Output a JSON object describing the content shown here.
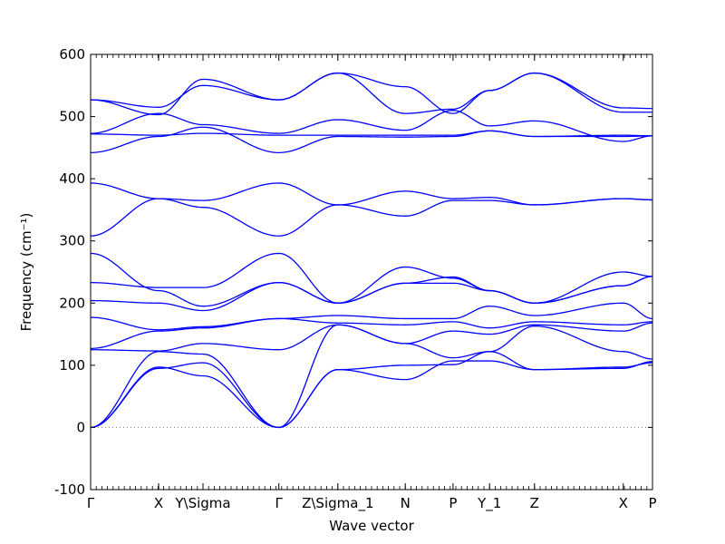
{
  "chart_data": {
    "type": "line",
    "title": "",
    "xlabel": "Wave vector",
    "ylabel": "Frequency (cm⁻¹)",
    "ylim": [
      -100,
      600
    ],
    "yticks": [
      -100,
      0,
      100,
      200,
      300,
      400,
      500,
      600
    ],
    "xlim": [
      0,
      1
    ],
    "series_color": "#0000ff",
    "zero_line": {
      "value": 0,
      "style": "dotted",
      "color": "#808080"
    },
    "xticks": [
      {
        "label": "Γ",
        "x": 0.0
      },
      {
        "label": "X",
        "x": 0.121
      },
      {
        "label": "Y\\Sigma",
        "x": 0.2
      },
      {
        "label": "Γ",
        "x": 0.335
      },
      {
        "label": "Z\\Sigma_1",
        "x": 0.44
      },
      {
        "label": "N",
        "x": 0.56
      },
      {
        "label": "P",
        "x": 0.645
      },
      {
        "label": "Y_1",
        "x": 0.71
      },
      {
        "label": "Z",
        "x": 0.79
      },
      {
        "label": "X",
        "x": 0.948
      },
      {
        "label": "P",
        "x": 1.0
      }
    ],
    "series": [
      {
        "x": [
          0,
          0.121,
          0.2,
          0.335,
          0.44,
          0.56,
          0.645,
          0.71,
          0.79,
          0.948,
          1.0
        ],
        "values": [
          0,
          95,
          104,
          0,
          93,
          77,
          107,
          107,
          93,
          95,
          106
        ]
      },
      {
        "x": [
          0,
          0.121,
          0.2,
          0.335,
          0.44,
          0.56,
          0.645,
          0.71,
          0.79,
          0.948,
          1.0
        ],
        "values": [
          0,
          97,
          83,
          0,
          93,
          100,
          101,
          122,
          93,
          97,
          104
        ]
      },
      {
        "x": [
          0,
          0.121,
          0.2,
          0.335,
          0.44,
          0.56,
          0.645,
          0.71,
          0.79,
          0.948,
          1.0
        ],
        "values": [
          0,
          122,
          118,
          0,
          165,
          135,
          112,
          122,
          163,
          122,
          110
        ]
      },
      {
        "x": [
          0,
          0.121,
          0.2,
          0.335,
          0.44,
          0.56,
          0.645,
          0.71,
          0.79,
          0.948,
          1.0
        ],
        "values": [
          125,
          123,
          135,
          125,
          165,
          135,
          155,
          150,
          165,
          155,
          168
        ]
      },
      {
        "x": [
          0,
          0.121,
          0.2,
          0.335,
          0.44,
          0.56,
          0.645,
          0.71,
          0.79,
          0.948,
          1.0
        ],
        "values": [
          127,
          155,
          160,
          175,
          168,
          165,
          170,
          160,
          170,
          165,
          170
        ]
      },
      {
        "x": [
          0,
          0.121,
          0.2,
          0.335,
          0.44,
          0.56,
          0.645,
          0.71,
          0.79,
          0.948,
          1.0
        ],
        "values": [
          177,
          157,
          162,
          175,
          180,
          175,
          175,
          195,
          180,
          200,
          175
        ]
      },
      {
        "x": [
          0,
          0.121,
          0.2,
          0.335,
          0.44,
          0.56,
          0.645,
          0.71,
          0.79,
          0.948,
          1.0
        ],
        "values": [
          204,
          200,
          188,
          233,
          200,
          232,
          242,
          220,
          200,
          228,
          243
        ]
      },
      {
        "x": [
          0,
          0.121,
          0.2,
          0.335,
          0.44,
          0.56,
          0.645,
          0.71,
          0.79,
          0.948,
          1.0
        ],
        "values": [
          233,
          225,
          225,
          280,
          200,
          258,
          240,
          220,
          200,
          250,
          243
        ]
      },
      {
        "x": [
          0,
          0.121,
          0.2,
          0.335,
          0.44,
          0.56,
          0.645,
          0.71,
          0.79,
          0.948,
          1.0
        ],
        "values": [
          280,
          220,
          195,
          233,
          200,
          232,
          232,
          220,
          200,
          228,
          243
        ]
      },
      {
        "x": [
          0,
          0.121,
          0.2,
          0.335,
          0.44,
          0.56,
          0.645,
          0.71,
          0.79,
          0.948,
          1.0
        ],
        "values": [
          308,
          368,
          354,
          308,
          358,
          340,
          365,
          365,
          358,
          368,
          366
        ]
      },
      {
        "x": [
          0,
          0.121,
          0.2,
          0.335,
          0.44,
          0.56,
          0.645,
          0.71,
          0.79,
          0.948,
          1.0
        ],
        "values": [
          393,
          368,
          365,
          393,
          358,
          380,
          368,
          370,
          358,
          368,
          366
        ]
      },
      {
        "x": [
          0,
          0.121,
          0.2,
          0.335,
          0.44,
          0.56,
          0.645,
          0.71,
          0.79,
          0.948,
          1.0
        ],
        "values": [
          442,
          468,
          483,
          442,
          468,
          467,
          468,
          477,
          468,
          468,
          469
        ]
      },
      {
        "x": [
          0,
          0.121,
          0.2,
          0.335,
          0.44,
          0.56,
          0.645,
          0.71,
          0.79,
          0.948,
          1.0
        ],
        "values": [
          472,
          470,
          473,
          470,
          470,
          470,
          470,
          477,
          468,
          470,
          469
        ]
      },
      {
        "x": [
          0,
          0.121,
          0.2,
          0.335,
          0.44,
          0.56,
          0.645,
          0.71,
          0.79,
          0.948,
          1.0
        ],
        "values": [
          473,
          505,
          487,
          473,
          495,
          478,
          510,
          485,
          493,
          460,
          469
        ]
      },
      {
        "x": [
          0,
          0.121,
          0.2,
          0.335,
          0.44,
          0.56,
          0.645,
          0.71,
          0.79,
          0.948,
          1.0
        ],
        "values": [
          527,
          515,
          550,
          527,
          570,
          505,
          512,
          542,
          570,
          514,
          513
        ]
      },
      {
        "x": [
          0,
          0.121,
          0.2,
          0.335,
          0.44,
          0.56,
          0.645,
          0.71,
          0.79,
          0.948,
          1.0
        ],
        "values": [
          527,
          503,
          560,
          527,
          570,
          548,
          505,
          542,
          570,
          507,
          507
        ]
      }
    ]
  }
}
